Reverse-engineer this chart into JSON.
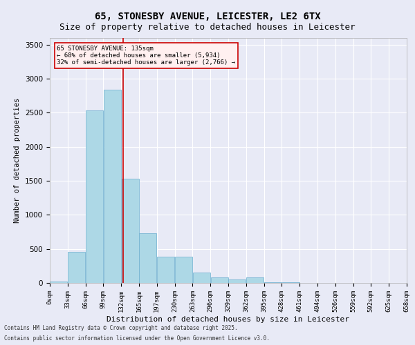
{
  "title1": "65, STONESBY AVENUE, LEICESTER, LE2 6TX",
  "title2": "Size of property relative to detached houses in Leicester",
  "xlabel": "Distribution of detached houses by size in Leicester",
  "ylabel": "Number of detached properties",
  "bar_color": "#add8e6",
  "bar_edge_color": "#6daed0",
  "bg_color": "#e8eaf6",
  "plot_bg_color": "#e8eaf6",
  "grid_color": "#ffffff",
  "vline_x": 135,
  "vline_color": "#cc0000",
  "annotation_title": "65 STONESBY AVENUE: 135sqm",
  "annotation_line2": "← 68% of detached houses are smaller (5,934)",
  "annotation_line3": "32% of semi-detached houses are larger (2,766) →",
  "annotation_box_color": "#ffcccc",
  "annotation_box_edge": "#cc0000",
  "footnote1": "Contains HM Land Registry data © Crown copyright and database right 2025.",
  "footnote2": "Contains public sector information licensed under the Open Government Licence v3.0.",
  "bin_edges": [
    0,
    33,
    66,
    99,
    132,
    165,
    198,
    231,
    264,
    297,
    330,
    363,
    396,
    429,
    462,
    495,
    528,
    561,
    594,
    627,
    660
  ],
  "bin_labels": [
    "0sqm",
    "33sqm",
    "66sqm",
    "99sqm",
    "132sqm",
    "165sqm",
    "197sqm",
    "230sqm",
    "263sqm",
    "296sqm",
    "329sqm",
    "362sqm",
    "395sqm",
    "428sqm",
    "461sqm",
    "494sqm",
    "526sqm",
    "559sqm",
    "592sqm",
    "625sqm",
    "658sqm"
  ],
  "bar_heights": [
    20,
    460,
    2540,
    2840,
    1530,
    730,
    390,
    390,
    150,
    80,
    50,
    80,
    10,
    10,
    5,
    2,
    0,
    0,
    0,
    0
  ],
  "ylim": [
    0,
    3600
  ],
  "yticks": [
    0,
    500,
    1000,
    1500,
    2000,
    2500,
    3000,
    3500
  ]
}
